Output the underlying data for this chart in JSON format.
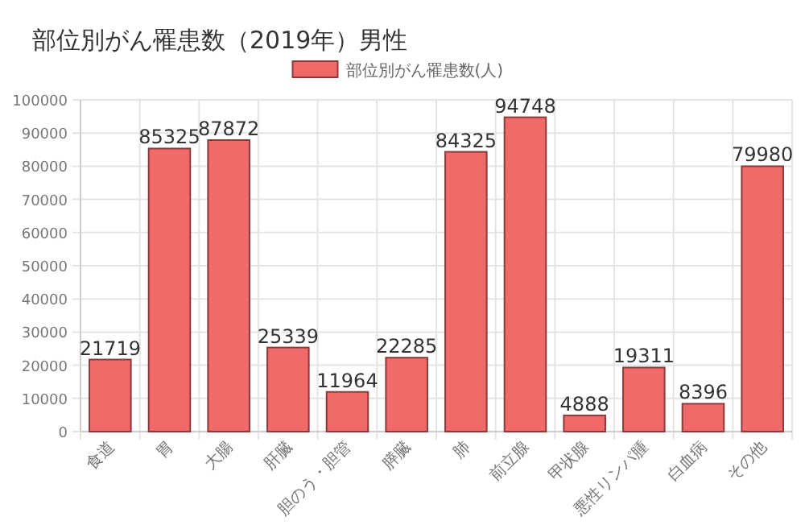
{
  "chart_data": {
    "type": "bar",
    "title": "部位別がん罹患数（2019年）男性",
    "categories": [
      "食道",
      "胃",
      "大腸",
      "肝臓",
      "胆のう・胆管",
      "膵臓",
      "肺",
      "前立腺",
      "甲状腺",
      "悪性リンパ腫",
      "白血病",
      "その他"
    ],
    "series": [
      {
        "name": "部位別がん罹患数(人)",
        "color": "#f06a6a",
        "values": [
          21719,
          85325,
          87872,
          25339,
          11964,
          22285,
          84325,
          94748,
          4888,
          19311,
          8396,
          79980
        ]
      }
    ],
    "ylim": [
      0,
      100000
    ],
    "yticks": [
      0,
      10000,
      20000,
      30000,
      40000,
      50000,
      60000,
      70000,
      80000,
      90000,
      100000
    ],
    "grid": true,
    "legend": "top",
    "data_labels": true
  }
}
